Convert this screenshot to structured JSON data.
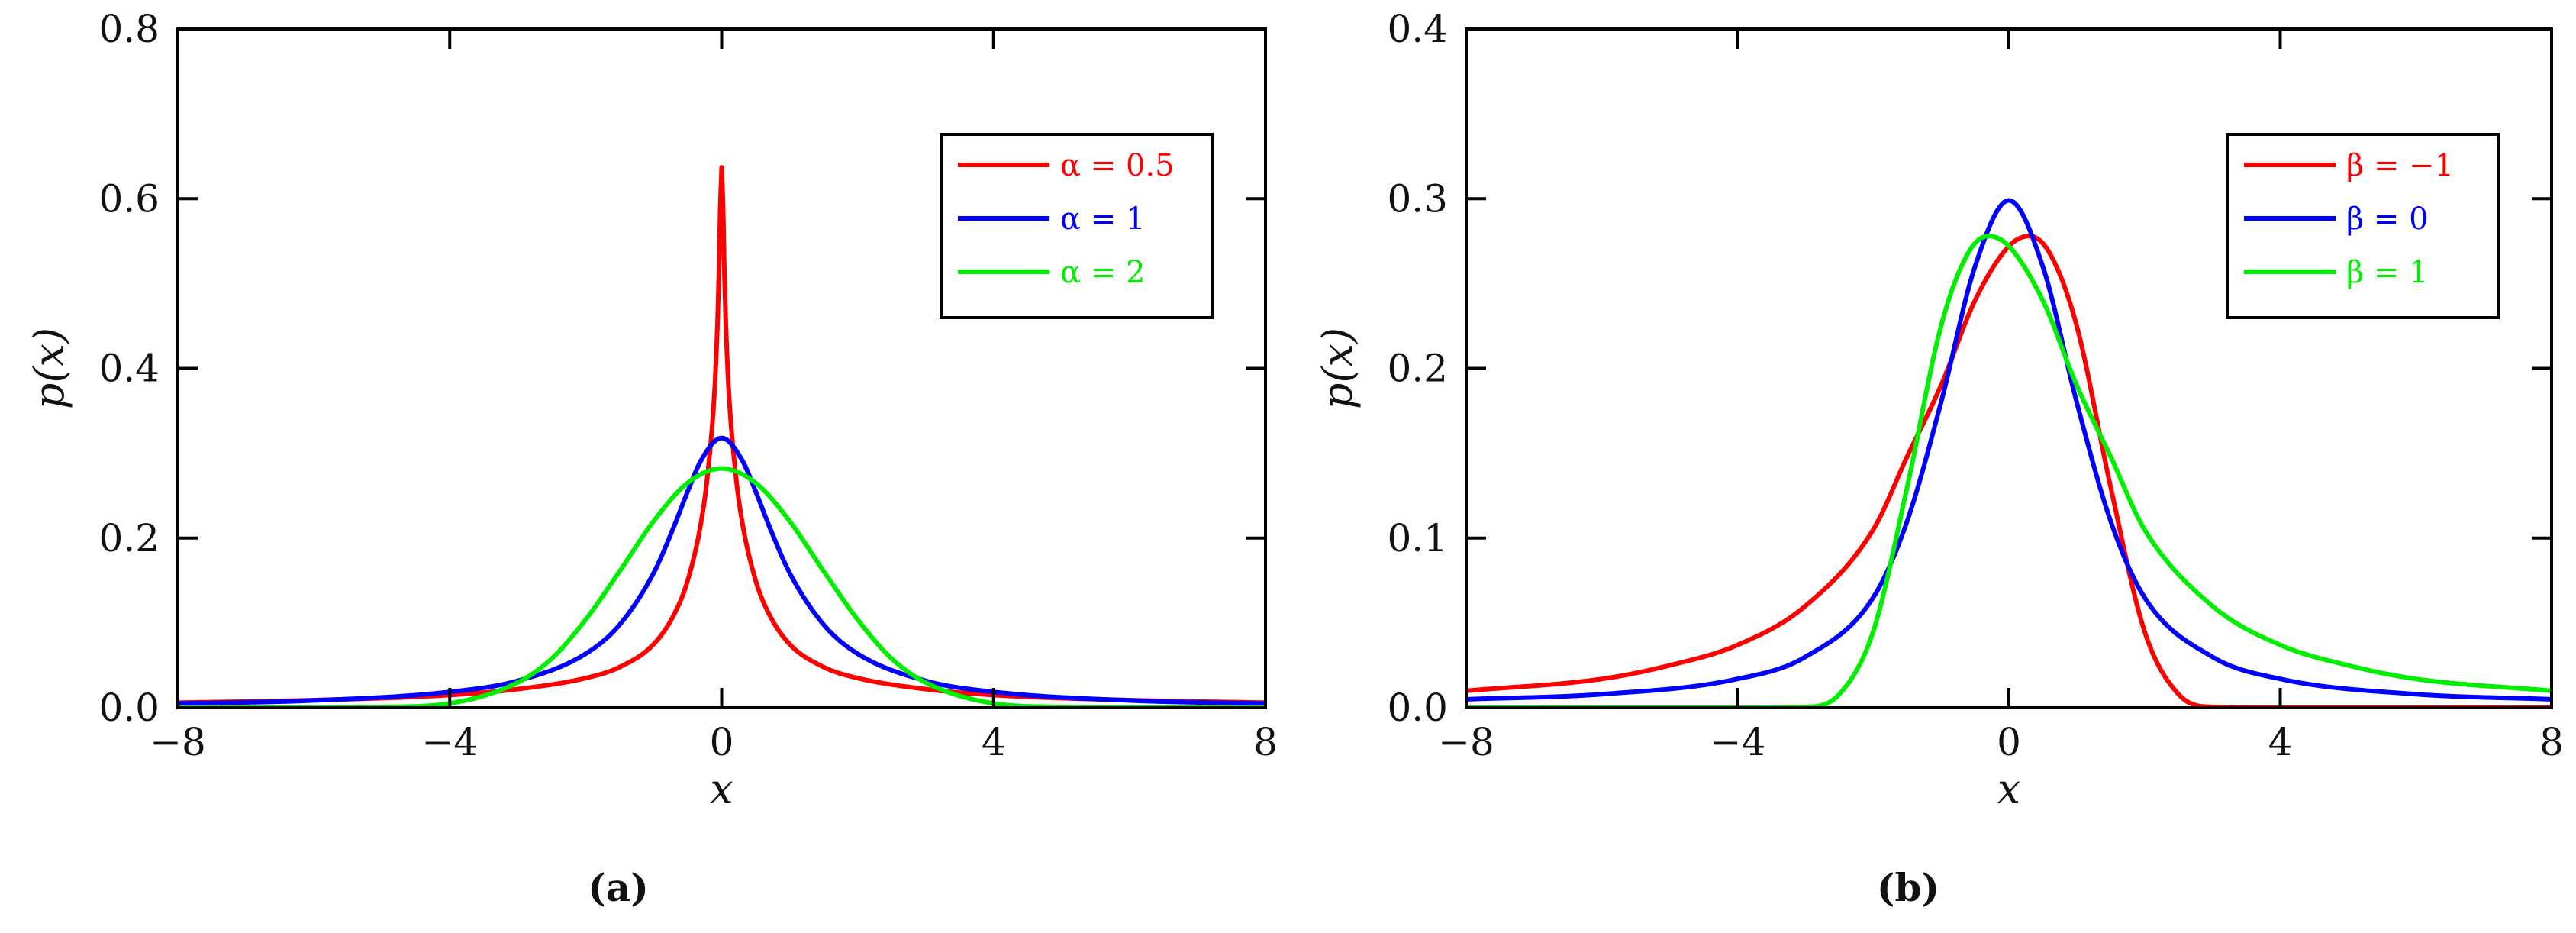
{
  "chart_data": [
    {
      "type": "line",
      "panel_label": "(a)",
      "xlabel": "x",
      "ylabel": "p(x)",
      "xlim": [
        -8,
        8
      ],
      "ylim": [
        0,
        0.8
      ],
      "xticks": [
        -8,
        -4,
        0,
        4,
        8
      ],
      "xtick_labels": [
        "−8",
        "−4",
        "0",
        "4",
        "8"
      ],
      "yticks": [
        0,
        0.2,
        0.4,
        0.6,
        0.8
      ],
      "ytick_labels": [
        "0.0",
        "0.2",
        "0.4",
        "0.6",
        "0.8"
      ],
      "legend_position": "top-right",
      "series": [
        {
          "name": "α = 0.5",
          "color": "#ff0000",
          "x": [
            -8,
            -6,
            -4,
            -3,
            -2,
            -1.5,
            -1,
            -0.7,
            -0.5,
            -0.3,
            -0.2,
            -0.1,
            -0.05,
            0,
            0.05,
            0.1,
            0.2,
            0.3,
            0.5,
            0.7,
            1,
            1.5,
            2,
            3,
            4,
            6,
            8
          ],
          "y": [
            0.006,
            0.009,
            0.015,
            0.022,
            0.035,
            0.048,
            0.075,
            0.11,
            0.15,
            0.22,
            0.28,
            0.38,
            0.48,
            0.637,
            0.48,
            0.38,
            0.28,
            0.22,
            0.15,
            0.11,
            0.075,
            0.048,
            0.035,
            0.022,
            0.015,
            0.009,
            0.006
          ]
        },
        {
          "name": "α = 1",
          "color": "#0000ff",
          "x": [
            -8,
            -6,
            -4,
            -3,
            -2,
            -1.5,
            -1,
            -0.7,
            -0.5,
            -0.3,
            0,
            0.3,
            0.5,
            0.7,
            1,
            1.5,
            2,
            3,
            4,
            6,
            8
          ],
          "y": [
            0.0049,
            0.0086,
            0.0187,
            0.0318,
            0.0637,
            0.098,
            0.159,
            0.214,
            0.255,
            0.292,
            0.318,
            0.292,
            0.255,
            0.214,
            0.159,
            0.098,
            0.0637,
            0.0318,
            0.0187,
            0.0086,
            0.0049
          ]
        },
        {
          "name": "α = 2",
          "color": "#00ee00",
          "x": [
            -8,
            -6,
            -5,
            -4,
            -3,
            -2.5,
            -2,
            -1.5,
            -1,
            -0.5,
            0,
            0.5,
            1,
            1.5,
            2,
            2.5,
            3,
            4,
            5,
            6,
            8
          ],
          "y": [
            0,
            0.0003,
            0.0009,
            0.0052,
            0.0298,
            0.058,
            0.104,
            0.161,
            0.22,
            0.265,
            0.282,
            0.265,
            0.22,
            0.161,
            0.104,
            0.058,
            0.0298,
            0.0052,
            0.0009,
            0.0003,
            0
          ]
        }
      ]
    },
    {
      "type": "line",
      "panel_label": "(b)",
      "xlabel": "x",
      "ylabel": "p(x)",
      "xlim": [
        -8,
        8
      ],
      "ylim": [
        0,
        0.4
      ],
      "xticks": [
        -8,
        -4,
        0,
        4,
        8
      ],
      "xtick_labels": [
        "−8",
        "−4",
        "0",
        "4",
        "8"
      ],
      "yticks": [
        0,
        0.1,
        0.2,
        0.3,
        0.4
      ],
      "ytick_labels": [
        "0.0",
        "0.1",
        "0.2",
        "0.3",
        "0.4"
      ],
      "legend_position": "top-right",
      "series": [
        {
          "name": "β = −1",
          "color": "#ff0000",
          "x": [
            -8,
            -6,
            -5,
            -4,
            -3,
            -2,
            -1.5,
            -1,
            -0.5,
            0,
            0.3,
            0.6,
            1,
            1.5,
            2,
            2.5,
            3,
            4,
            8
          ],
          "y": [
            0.01,
            0.017,
            0.025,
            0.037,
            0.06,
            0.105,
            0.148,
            0.19,
            0.24,
            0.272,
            0.278,
            0.268,
            0.225,
            0.13,
            0.045,
            0.008,
            0.0005,
            0,
            0
          ]
        },
        {
          "name": "β = 0",
          "color": "#0000ff",
          "x": [
            -8,
            -6,
            -4,
            -3,
            -2,
            -1.5,
            -1,
            -0.5,
            0,
            0.5,
            1,
            1.5,
            2,
            3,
            4,
            6,
            8
          ],
          "y": [
            0.005,
            0.008,
            0.017,
            0.03,
            0.065,
            0.11,
            0.18,
            0.26,
            0.299,
            0.26,
            0.18,
            0.11,
            0.065,
            0.03,
            0.017,
            0.008,
            0.005
          ]
        },
        {
          "name": "β = 1",
          "color": "#00ee00",
          "x": [
            -8,
            -4,
            -3,
            -2.5,
            -2,
            -1.5,
            -1,
            -0.6,
            -0.3,
            0,
            0.5,
            1,
            1.5,
            2,
            3,
            4,
            5,
            6,
            8
          ],
          "y": [
            0,
            0,
            0.0005,
            0.008,
            0.045,
            0.13,
            0.225,
            0.268,
            0.278,
            0.272,
            0.24,
            0.19,
            0.148,
            0.105,
            0.06,
            0.037,
            0.025,
            0.017,
            0.01
          ]
        }
      ]
    }
  ]
}
